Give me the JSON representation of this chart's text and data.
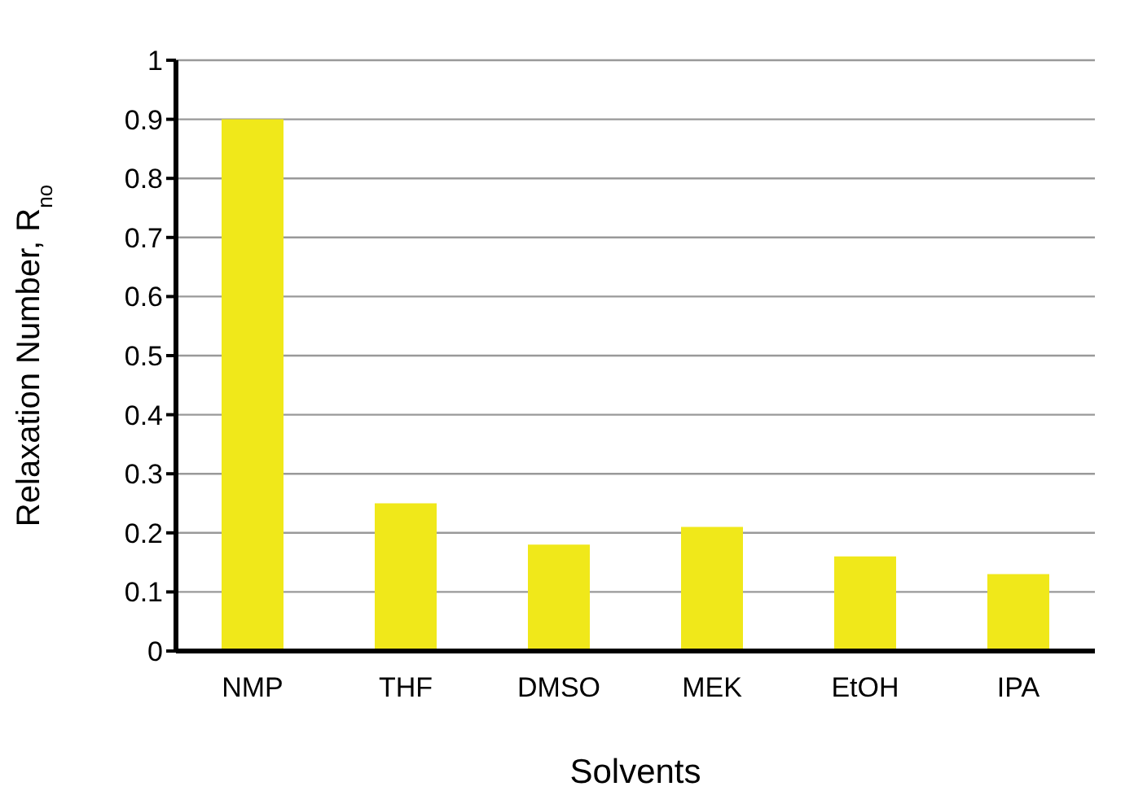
{
  "chart_data": {
    "type": "bar",
    "xlabel": "Solvents",
    "ylabel": "Relaxation Number, R$_{no}$",
    "categories": [
      "NMP",
      "THF",
      "DMSO",
      "MEK",
      "EtOH",
      "IPA"
    ],
    "values": [
      0.9,
      0.25,
      0.18,
      0.21,
      0.16,
      0.13
    ],
    "color": "#f0e81a",
    "ylim": [
      0,
      1
    ],
    "yticks": [
      0,
      0.1,
      0.2,
      0.3,
      0.4,
      0.5,
      0.6,
      0.7,
      0.8,
      0.9,
      1
    ],
    "grid": "y"
  }
}
